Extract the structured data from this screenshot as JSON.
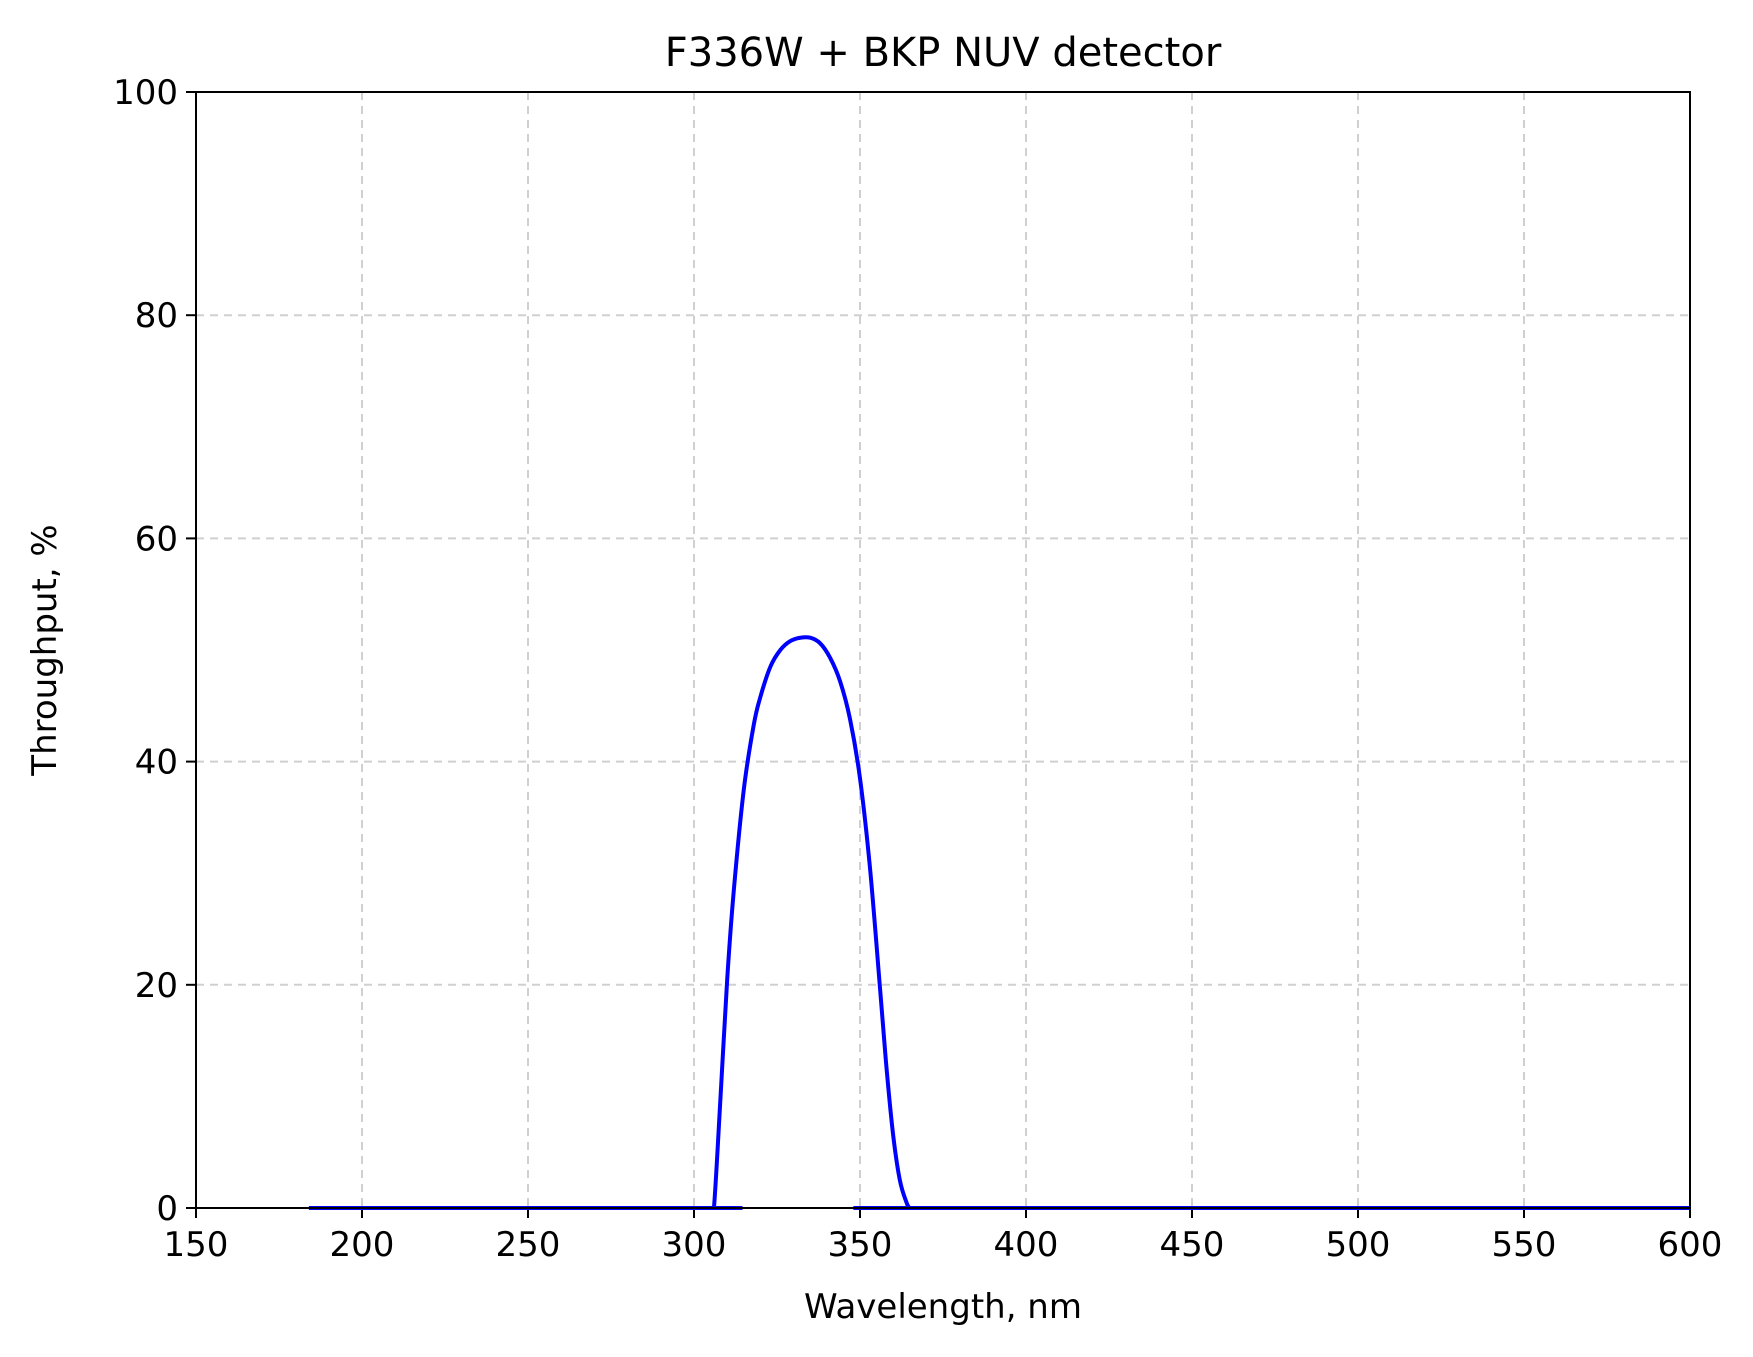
{
  "chart_data": {
    "type": "line",
    "title": "F336W + BKP NUV detector",
    "xlabel": "Wavelength, nm",
    "ylabel": "Throughput, %",
    "xlim": [
      150,
      600
    ],
    "ylim": [
      0,
      100
    ],
    "xticks": [
      "150",
      "200",
      "250",
      "300",
      "350",
      "400",
      "450",
      "500",
      "550",
      "600"
    ],
    "yticks": [
      "0",
      "20",
      "40",
      "60",
      "80",
      "100"
    ],
    "grid": true,
    "series": [
      {
        "color": "#0000ff",
        "x": [
          184,
          305,
          306,
          308,
          310,
          312,
          315,
          318,
          320,
          323,
          326,
          329,
          332,
          335,
          338,
          341,
          344,
          347,
          350,
          353,
          356,
          358,
          360,
          362,
          364,
          365,
          366,
          600
        ],
        "y": [
          0,
          0,
          0,
          10,
          20.5,
          28.5,
          37.5,
          43.3,
          45.8,
          48.5,
          50,
          50.8,
          51.1,
          51.1,
          50.6,
          49.3,
          47.2,
          43.8,
          38.5,
          30.5,
          19.8,
          12.5,
          6.5,
          2.5,
          0.5,
          0,
          0,
          0
        ]
      }
    ]
  }
}
